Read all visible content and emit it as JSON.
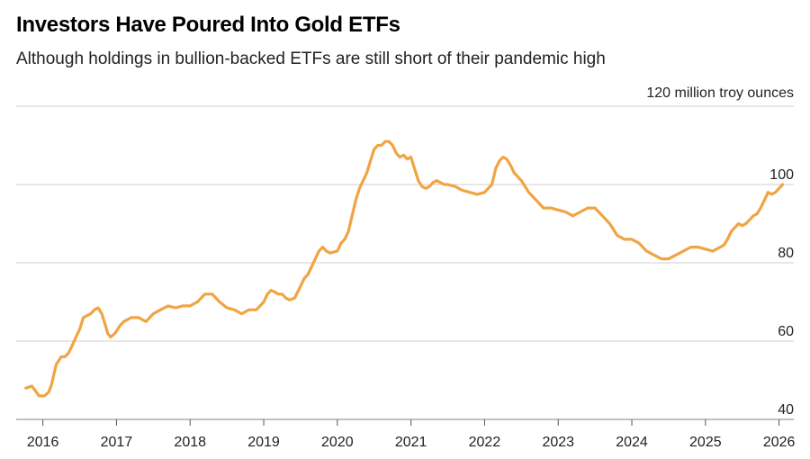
{
  "chart_data": {
    "type": "line",
    "title": "Investors Have Poured Into Gold ETFs",
    "subtitle": "Although holdings in bullion-backed ETFs are still short of their pandemic high",
    "unit_label": "120 million troy ounces",
    "ylabel": "million troy ounces",
    "xlabel": "",
    "ylim": [
      40,
      120
    ],
    "xlim": [
      2015.75,
      2026.2
    ],
    "y_ticks": [
      40,
      60,
      80,
      100,
      120
    ],
    "y_tick_labels": [
      "40",
      "60",
      "80",
      "100"
    ],
    "x_ticks": [
      2016,
      2017,
      2018,
      2019,
      2020,
      2021,
      2022,
      2023,
      2024,
      2025,
      2026
    ],
    "x_tick_labels": [
      "2016",
      "2017",
      "2018",
      "2019",
      "2020",
      "2021",
      "2022",
      "2023",
      "2024",
      "2025",
      "2026"
    ],
    "grid": true,
    "color": "#f0a443",
    "series": [
      {
        "name": "Gold ETF holdings",
        "x": [
          2015.77,
          2015.85,
          2015.95,
          2016.02,
          2016.08,
          2016.12,
          2016.18,
          2016.25,
          2016.3,
          2016.35,
          2016.4,
          2016.45,
          2016.5,
          2016.55,
          2016.6,
          2016.65,
          2016.7,
          2016.75,
          2016.8,
          2016.85,
          2016.88,
          2016.92,
          2016.98,
          2017.05,
          2017.1,
          2017.2,
          2017.3,
          2017.4,
          2017.5,
          2017.6,
          2017.7,
          2017.8,
          2017.9,
          2018.0,
          2018.1,
          2018.2,
          2018.3,
          2018.35,
          2018.4,
          2018.5,
          2018.6,
          2018.7,
          2018.8,
          2018.9,
          2019.0,
          2019.05,
          2019.1,
          2019.15,
          2019.2,
          2019.25,
          2019.3,
          2019.35,
          2019.42,
          2019.5,
          2019.55,
          2019.6,
          2019.65,
          2019.7,
          2019.75,
          2019.8,
          2019.85,
          2019.9,
          2020.0,
          2020.05,
          2020.1,
          2020.15,
          2020.2,
          2020.25,
          2020.3,
          2020.35,
          2020.4,
          2020.45,
          2020.5,
          2020.55,
          2020.6,
          2020.65,
          2020.7,
          2020.75,
          2020.8,
          2020.85,
          2020.9,
          2020.95,
          2021.0,
          2021.05,
          2021.1,
          2021.15,
          2021.2,
          2021.25,
          2021.3,
          2021.35,
          2021.4,
          2021.45,
          2021.5,
          2021.6,
          2021.7,
          2021.8,
          2021.9,
          2022.0,
          2022.05,
          2022.1,
          2022.15,
          2022.2,
          2022.25,
          2022.3,
          2022.35,
          2022.4,
          2022.45,
          2022.5,
          2022.6,
          2022.7,
          2022.8,
          2022.9,
          2023.0,
          2023.1,
          2023.2,
          2023.3,
          2023.4,
          2023.5,
          2023.6,
          2023.7,
          2023.8,
          2023.9,
          2024.0,
          2024.1,
          2024.2,
          2024.3,
          2024.4,
          2024.5,
          2024.6,
          2024.7,
          2024.8,
          2024.9,
          2025.0,
          2025.1,
          2025.15,
          2025.2,
          2025.25,
          2025.3,
          2025.35,
          2025.4,
          2025.45,
          2025.5,
          2025.55,
          2025.6,
          2025.65,
          2025.7,
          2025.75,
          2025.8,
          2025.85,
          2025.9,
          2025.95,
          2026.0,
          2026.05
        ],
        "values": [
          48,
          48.5,
          46,
          46,
          47,
          49,
          54,
          56,
          56,
          57,
          59,
          61,
          63,
          66,
          66.5,
          67,
          68,
          68.5,
          67,
          64,
          62,
          61,
          62,
          64,
          65,
          66,
          66,
          65,
          67,
          68,
          69,
          68.5,
          69,
          69,
          70,
          72,
          72,
          71,
          70,
          68.5,
          68,
          67,
          68,
          68,
          70,
          72,
          73,
          72.5,
          72,
          72,
          71,
          70.5,
          71,
          74,
          76,
          77,
          79,
          81,
          83,
          84,
          83,
          82.5,
          83,
          85,
          86,
          88,
          92,
          96,
          99,
          101,
          103,
          106,
          109,
          110,
          110,
          111,
          111,
          110,
          108,
          107,
          107.5,
          106.5,
          107,
          104,
          101,
          99.5,
          99,
          99.5,
          100.5,
          101,
          100.5,
          100,
          100,
          99.5,
          98.5,
          98,
          97.5,
          98,
          99,
          100,
          104,
          106,
          107,
          106.5,
          105,
          103,
          102,
          101,
          98,
          96,
          94,
          94,
          93.5,
          93,
          92,
          93,
          94,
          94,
          92,
          90,
          87,
          86,
          86,
          85,
          83,
          82,
          81,
          81,
          82,
          83,
          84,
          84,
          83.5,
          83,
          83.5,
          84,
          84.5,
          86,
          88,
          89,
          90,
          89.5,
          90,
          91,
          92,
          92.5,
          94,
          96,
          98,
          97.5,
          98,
          99,
          100
        ]
      }
    ]
  }
}
